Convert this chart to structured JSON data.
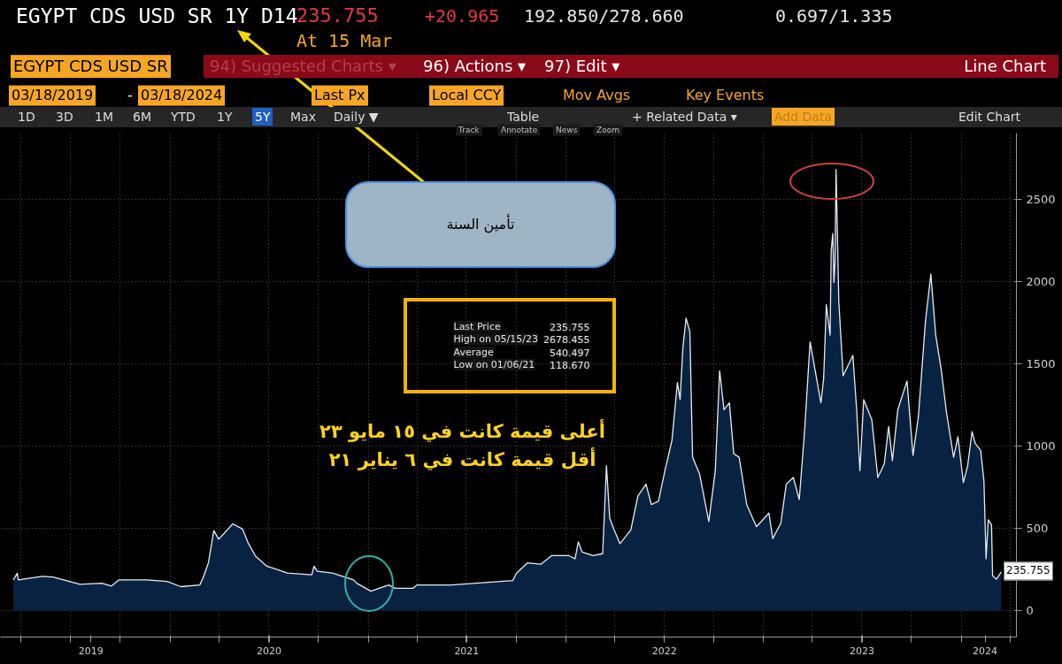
{
  "chart_data": {
    "type": "area",
    "title": "EGYPT CDS USD SR 1Y D14",
    "subtitle": "At 15 Mar",
    "x": [
      "2019-03-18",
      "2019-03-25",
      "2019-03-27",
      "2019-05-10",
      "2019-05-30",
      "2019-07-19",
      "2019-08-28",
      "2019-09-15",
      "2019-09-29",
      "2019-11-19",
      "2019-12-27",
      "2020-01-21",
      "2020-02-25",
      "2020-03-02",
      "2020-03-12",
      "2020-03-22",
      "2020-03-31",
      "2020-04-26",
      "2020-05-14",
      "2020-05-24",
      "2020-06-07",
      "2020-06-28",
      "2020-07-18",
      "2020-08-05",
      "2020-09-19",
      "2020-09-23",
      "2020-09-29",
      "2020-10-27",
      "2020-12-05",
      "2020-12-11",
      "2021-01-06",
      "2021-02-08",
      "2021-02-20",
      "2021-03-25",
      "2021-04-01",
      "2021-06-03",
      "2021-08-05",
      "2021-09-25",
      "2021-10-02",
      "2021-10-22",
      "2021-11-16",
      "2021-12-06",
      "2022-01-06",
      "2022-01-18",
      "2022-01-24",
      "2022-01-31",
      "2022-02-20",
      "2022-03-10",
      "2022-03-17",
      "2022-03-23",
      "2022-03-30",
      "2022-04-11",
      "2022-05-01",
      "2022-05-14",
      "2022-05-29",
      "2022-06-08",
      "2022-06-21",
      "2022-07-03",
      "2022-07-16",
      "2022-07-26",
      "2022-07-31",
      "2022-08-05",
      "2022-08-11",
      "2022-08-18",
      "2022-08-23",
      "2022-09-05",
      "2022-09-22",
      "2022-10-04",
      "2022-10-12",
      "2022-10-20",
      "2022-10-30",
      "2022-11-07",
      "2022-11-17",
      "2022-12-01",
      "2022-12-19",
      "2023-01-11",
      "2023-01-18",
      "2023-02-02",
      "2023-02-12",
      "2023-02-25",
      "2023-03-08",
      "2023-03-18",
      "2023-03-28",
      "2023-04-07",
      "2023-04-17",
      "2023-04-22",
      "2023-04-27",
      "2023-05-04",
      "2023-05-06",
      "2023-05-09",
      "2023-05-11",
      "2023-05-13",
      "2023-05-15",
      "2023-05-20",
      "2023-05-28",
      "2023-06-15",
      "2023-06-22",
      "2023-06-28",
      "2023-07-05",
      "2023-07-20",
      "2023-07-31",
      "2023-08-12",
      "2023-08-20",
      "2023-08-27",
      "2023-09-06",
      "2023-09-23",
      "2023-10-04",
      "2023-10-14",
      "2023-10-27",
      "2023-11-06",
      "2023-11-15",
      "2023-11-25",
      "2023-12-05",
      "2023-12-18",
      "2023-12-26",
      "2024-01-05",
      "2024-01-13",
      "2024-01-21",
      "2024-01-27",
      "2024-02-06",
      "2024-02-12",
      "2024-02-16",
      "2024-02-20",
      "2024-02-26",
      "2024-02-28",
      "2024-03-06",
      "2024-03-15"
    ],
    "series": [
      {
        "color": "#e6ecf2",
        "values": [
          187,
          228,
          187,
          208,
          204,
          160,
          167,
          150,
          187,
          187,
          177,
          146,
          156,
          198,
          290,
          486,
          434,
          527,
          496,
          414,
          331,
          270,
          249,
          228,
          218,
          270,
          239,
          228,
          187,
          167,
          118.67,
          156,
          136,
          136,
          156,
          156,
          171,
          183,
          228,
          290,
          282,
          335,
          335,
          315,
          418,
          356,
          335,
          346,
          881,
          562,
          500,
          407,
          490,
          696,
          768,
          644,
          665,
          850,
          1035,
          1385,
          1282,
          1591,
          1776,
          1694,
          932,
          829,
          541,
          850,
          1457,
          1220,
          1262,
          953,
          932,
          644,
          510,
          593,
          438,
          531,
          768,
          809,
          675,
          1097,
          1632,
          1447,
          1262,
          1406,
          1858,
          1673,
          2188,
          2291,
          1992,
          2116,
          2678.455,
          1879,
          1426,
          1550,
          1220,
          850,
          1282,
          1159,
          809,
          891,
          1118,
          912,
          1220,
          1395,
          943,
          1179,
          1755,
          2044,
          1673,
          1467,
          1200,
          932,
          1056,
          778,
          881,
          1087,
          1015,
          973,
          788,
          315,
          552,
          521,
          212,
          191,
          235.755
        ]
      }
    ],
    "xlim": [
      "2019-02-22",
      "2024-04-12"
    ],
    "xticks": [
      {
        "value": "2019-04-01",
        "label": null
      },
      {
        "value": "2019-07-01",
        "label": null
      },
      {
        "value": "2019-08-08",
        "label": "2019"
      },
      {
        "value": "2019-10-01",
        "label": null
      },
      {
        "value": "2020-01-01",
        "label": null
      },
      {
        "value": "2020-04-01",
        "label": null
      },
      {
        "value": "2020-07-01",
        "label": null
      },
      {
        "value": "2020-07-02",
        "label": "2020"
      },
      {
        "value": "2020-10-01",
        "label": null
      },
      {
        "value": "2021-01-01",
        "label": null
      },
      {
        "value": "2021-04-01",
        "label": null
      },
      {
        "value": "2021-07-01",
        "label": null
      },
      {
        "value": "2021-07-02",
        "label": "2021"
      },
      {
        "value": "2021-10-01",
        "label": null
      },
      {
        "value": "2022-01-01",
        "label": null
      },
      {
        "value": "2022-04-01",
        "label": null
      },
      {
        "value": "2022-07-01",
        "label": null
      },
      {
        "value": "2022-07-02",
        "label": "2022"
      },
      {
        "value": "2022-10-01",
        "label": null
      },
      {
        "value": "2023-01-01",
        "label": null
      },
      {
        "value": "2023-04-01",
        "label": null
      },
      {
        "value": "2023-07-01",
        "label": null
      },
      {
        "value": "2023-07-02",
        "label": "2023"
      },
      {
        "value": "2023-10-01",
        "label": null
      },
      {
        "value": "2024-01-01",
        "label": null
      },
      {
        "value": "2024-02-14",
        "label": "2024"
      },
      {
        "value": "2024-04-01",
        "label": null
      }
    ],
    "ylim": [
      -160,
      2900
    ],
    "yticks": [
      0,
      500,
      1000,
      1500,
      2000,
      2500
    ],
    "grid": true,
    "annotations": [
      "235.755",
      "+20.965",
      "192.850/278.660",
      "0.697/1.335",
      "EGYPT CDS USD SR",
      "94) Suggested Charts ▾",
      "96) Actions ▾",
      "97) Edit ▾",
      "Line Chart",
      "03/18/2019",
      "-",
      "03/18/2024",
      "Last Px",
      "Local CCY",
      "Mov Avgs",
      "Key Events",
      "1D",
      "3D",
      "1M",
      "6M",
      "YTD",
      "1Y",
      "5Y",
      "Max",
      "Daily ▼",
      "Table",
      "+ Related Data ▾",
      "Add Data",
      "Edit Chart",
      "Track",
      "Annotate",
      "News",
      "Zoom",
      "تأمين السنة",
      "Last Price",
      "235.755",
      "High on 05/15/23",
      "2678.455",
      "Average",
      "540.497",
      "Low on 01/06/21",
      "118.670",
      "أعلى قيمة كانت في ١٥ مايو ٢٣",
      "أقل قيمة كانت في ٦ يناير ٢١",
      {
        "text": "235.755",
        "x": "2024-03-15",
        "y": 235.755
      }
    ]
  }
}
